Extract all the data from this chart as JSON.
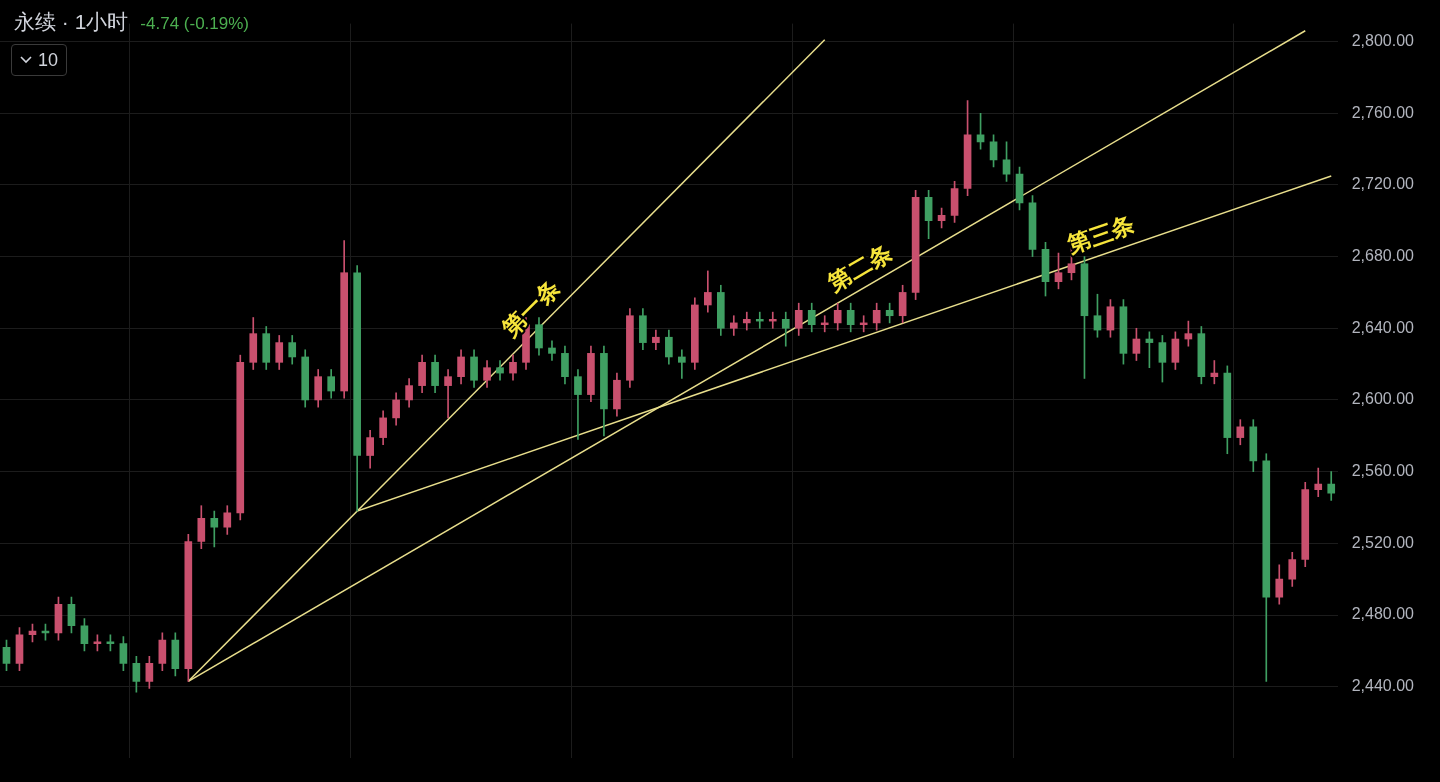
{
  "chart_data": {
    "type": "candlestick",
    "title": "永续 · 1小时",
    "subtitle": "-4.74 (-0.19%)",
    "annotations": [
      "10"
    ],
    "categories": [
      null,
      null,
      null,
      null,
      null,
      null,
      null,
      null,
      null,
      null,
      null,
      null,
      null,
      null,
      null,
      null,
      null,
      null,
      null,
      null,
      null,
      null,
      null,
      null,
      null,
      null,
      null,
      null,
      null,
      null,
      null,
      null,
      null,
      null,
      null,
      null,
      null,
      null,
      null,
      null,
      null,
      null,
      null,
      null,
      null,
      null,
      null,
      null,
      null,
      null,
      null,
      null,
      null,
      null,
      null,
      null,
      null,
      null,
      null,
      null,
      null,
      null,
      null,
      null,
      null,
      null,
      null,
      null,
      null,
      null,
      null,
      null,
      null,
      null,
      null,
      null,
      null,
      null,
      null,
      null,
      null,
      null,
      null,
      null,
      null,
      null,
      null,
      null,
      null,
      null,
      null,
      null,
      null,
      null,
      null,
      null,
      null,
      null,
      null,
      null,
      null,
      null,
      null
    ],
    "ohlc": [
      [
        2462,
        2466,
        2449,
        2453
      ],
      [
        2453,
        2473,
        2449,
        2469
      ],
      [
        2469,
        2475,
        2465,
        2471
      ],
      [
        2471,
        2475,
        2466,
        2470
      ],
      [
        2470,
        2490,
        2466,
        2486
      ],
      [
        2486,
        2490,
        2470,
        2474
      ],
      [
        2474,
        2478,
        2460,
        2464
      ],
      [
        2464,
        2469,
        2460,
        2465
      ],
      [
        2465,
        2469,
        2460,
        2464
      ],
      [
        2464,
        2468,
        2449,
        2453
      ],
      [
        2453,
        2457,
        2437,
        2443
      ],
      [
        2443,
        2457,
        2439,
        2453
      ],
      [
        2453,
        2470,
        2449,
        2466
      ],
      [
        2466,
        2470,
        2446,
        2450
      ],
      [
        2450,
        2525,
        2443,
        2521
      ],
      [
        2521,
        2541,
        2517,
        2534
      ],
      [
        2534,
        2538,
        2518,
        2529
      ],
      [
        2529,
        2541,
        2525,
        2537
      ],
      [
        2537,
        2625,
        2533,
        2621
      ],
      [
        2621,
        2646,
        2617,
        2637
      ],
      [
        2637,
        2641,
        2617,
        2621
      ],
      [
        2621,
        2636,
        2617,
        2632
      ],
      [
        2632,
        2636,
        2620,
        2624
      ],
      [
        2624,
        2628,
        2596,
        2600
      ],
      [
        2600,
        2617,
        2596,
        2613
      ],
      [
        2613,
        2617,
        2601,
        2605
      ],
      [
        2605,
        2689,
        2601,
        2671
      ],
      [
        2671,
        2675,
        2538,
        2569
      ],
      [
        2569,
        2583,
        2562,
        2579
      ],
      [
        2579,
        2594,
        2575,
        2590
      ],
      [
        2590,
        2604,
        2586,
        2600
      ],
      [
        2600,
        2612,
        2596,
        2608
      ],
      [
        2608,
        2625,
        2604,
        2621
      ],
      [
        2621,
        2625,
        2604,
        2608
      ],
      [
        2608,
        2617,
        2590,
        2613
      ],
      [
        2613,
        2628,
        2609,
        2624
      ],
      [
        2624,
        2628,
        2607,
        2611
      ],
      [
        2611,
        2622,
        2607,
        2618
      ],
      [
        2618,
        2622,
        2611,
        2615
      ],
      [
        2615,
        2625,
        2611,
        2621
      ],
      [
        2621,
        2646,
        2617,
        2642
      ],
      [
        2642,
        2646,
        2625,
        2629
      ],
      [
        2629,
        2633,
        2622,
        2626
      ],
      [
        2626,
        2630,
        2609,
        2613
      ],
      [
        2613,
        2617,
        2578,
        2603
      ],
      [
        2603,
        2630,
        2599,
        2626
      ],
      [
        2626,
        2630,
        2580,
        2595
      ],
      [
        2595,
        2615,
        2591,
        2611
      ],
      [
        2611,
        2651,
        2607,
        2647
      ],
      [
        2647,
        2651,
        2628,
        2632
      ],
      [
        2632,
        2639,
        2628,
        2635
      ],
      [
        2635,
        2639,
        2620,
        2624
      ],
      [
        2624,
        2628,
        2612,
        2621
      ],
      [
        2621,
        2657,
        2617,
        2653
      ],
      [
        2653,
        2672,
        2649,
        2660
      ],
      [
        2660,
        2664,
        2636,
        2640
      ],
      [
        2640,
        2647,
        2636,
        2643
      ],
      [
        2643,
        2649,
        2639,
        2645
      ],
      [
        2645,
        2649,
        2640,
        2644
      ],
      [
        2644,
        2649,
        2640,
        2645
      ],
      [
        2645,
        2649,
        2630,
        2640
      ],
      [
        2640,
        2654,
        2636,
        2650
      ],
      [
        2650,
        2654,
        2638,
        2642
      ],
      [
        2642,
        2647,
        2638,
        2643
      ],
      [
        2643,
        2654,
        2639,
        2650
      ],
      [
        2650,
        2654,
        2638,
        2642
      ],
      [
        2642,
        2647,
        2638,
        2643
      ],
      [
        2643,
        2654,
        2639,
        2650
      ],
      [
        2650,
        2654,
        2643,
        2647
      ],
      [
        2647,
        2664,
        2643,
        2660
      ],
      [
        2660,
        2717,
        2656,
        2713
      ],
      [
        2713,
        2717,
        2690,
        2700
      ],
      [
        2700,
        2707,
        2696,
        2703
      ],
      [
        2703,
        2722,
        2699,
        2718
      ],
      [
        2718,
        2767,
        2714,
        2748
      ],
      [
        2748,
        2760,
        2740,
        2744
      ],
      [
        2744,
        2748,
        2730,
        2734
      ],
      [
        2734,
        2744,
        2722,
        2726
      ],
      [
        2726,
        2730,
        2706,
        2710
      ],
      [
        2710,
        2714,
        2680,
        2684
      ],
      [
        2684,
        2688,
        2658,
        2666
      ],
      [
        2666,
        2682,
        2662,
        2671
      ],
      [
        2671,
        2685,
        2667,
        2676
      ],
      [
        2676,
        2680,
        2612,
        2647
      ],
      [
        2647,
        2659,
        2635,
        2639
      ],
      [
        2639,
        2656,
        2635,
        2652
      ],
      [
        2652,
        2656,
        2620,
        2626
      ],
      [
        2626,
        2640,
        2622,
        2634
      ],
      [
        2634,
        2638,
        2618,
        2632
      ],
      [
        2632,
        2636,
        2610,
        2621
      ],
      [
        2621,
        2638,
        2617,
        2634
      ],
      [
        2634,
        2644,
        2630,
        2637
      ],
      [
        2637,
        2641,
        2609,
        2613
      ],
      [
        2613,
        2622,
        2609,
        2615
      ],
      [
        2615,
        2619,
        2570,
        2579
      ],
      [
        2579,
        2589,
        2575,
        2585
      ],
      [
        2585,
        2589,
        2560,
        2566
      ],
      [
        2566,
        2570,
        2443,
        2490
      ],
      [
        2490,
        2508,
        2486,
        2500
      ],
      [
        2500,
        2515,
        2496,
        2511
      ],
      [
        2511,
        2554,
        2507,
        2550
      ],
      [
        2550,
        2562,
        2546,
        2553
      ],
      [
        2553,
        2560,
        2544,
        2548
      ]
    ],
    "series": [
      {
        "type": "line",
        "name": "第一条",
        "color": "#e8de8c",
        "values": [
          null,
          null,
          null,
          null,
          null,
          null,
          null,
          null,
          null,
          null,
          null,
          null,
          null,
          null,
          2443,
          null,
          null,
          null,
          null,
          null,
          null,
          null,
          null,
          null,
          null,
          null,
          null,
          null,
          null,
          null,
          null,
          null,
          null,
          null,
          null,
          null,
          null,
          null,
          null,
          null,
          null,
          null,
          null,
          null,
          null,
          null,
          null,
          null,
          null,
          null,
          null,
          null,
          null,
          null,
          null,
          null,
          null,
          null,
          null,
          null,
          null,
          null,
          null,
          2801,
          null,
          null,
          null,
          null,
          null,
          null,
          null,
          null,
          null,
          null,
          null,
          null,
          null,
          null,
          null,
          null,
          null,
          null,
          null,
          null,
          null,
          null,
          null,
          null,
          null,
          null,
          null,
          null,
          null,
          null,
          null,
          null,
          null,
          null,
          null,
          null,
          null,
          null,
          null
        ]
      },
      {
        "type": "line",
        "name": "第二条",
        "color": "#e8de8c",
        "values": [
          null,
          null,
          null,
          null,
          null,
          null,
          null,
          null,
          null,
          null,
          null,
          null,
          null,
          null,
          2443,
          null,
          null,
          null,
          null,
          null,
          null,
          null,
          null,
          null,
          null,
          null,
          null,
          null,
          null,
          null,
          null,
          null,
          null,
          null,
          null,
          null,
          null,
          null,
          null,
          null,
          null,
          null,
          null,
          null,
          null,
          null,
          null,
          null,
          null,
          null,
          null,
          null,
          null,
          null,
          null,
          null,
          null,
          null,
          null,
          null,
          null,
          null,
          null,
          null,
          null,
          null,
          null,
          null,
          null,
          null,
          null,
          null,
          null,
          null,
          null,
          null,
          null,
          null,
          null,
          null,
          null,
          null,
          null,
          null,
          null,
          null,
          null,
          null,
          null,
          null,
          null,
          null,
          null,
          null,
          null,
          null,
          null,
          null,
          null,
          null,
          2806,
          null,
          null
        ]
      },
      {
        "type": "line",
        "name": "第三条",
        "color": "#e8de8c",
        "values": [
          null,
          null,
          null,
          null,
          null,
          null,
          null,
          null,
          null,
          null,
          null,
          null,
          null,
          null,
          null,
          null,
          null,
          null,
          null,
          null,
          null,
          null,
          null,
          null,
          null,
          null,
          null,
          2538,
          null,
          null,
          null,
          null,
          null,
          null,
          null,
          null,
          null,
          null,
          null,
          null,
          null,
          null,
          null,
          null,
          null,
          null,
          null,
          null,
          null,
          null,
          null,
          null,
          null,
          null,
          null,
          null,
          null,
          null,
          null,
          null,
          null,
          null,
          null,
          null,
          null,
          null,
          null,
          null,
          null,
          null,
          null,
          null,
          null,
          null,
          null,
          null,
          null,
          null,
          null,
          null,
          null,
          null,
          null,
          null,
          null,
          null,
          null,
          null,
          null,
          null,
          null,
          null,
          null,
          null,
          null,
          null,
          null,
          null,
          null,
          null,
          null,
          null,
          2725
        ]
      }
    ],
    "ylim": [
      2400,
      2810
    ],
    "yticks": [
      {
        "value": 2440,
        "label": "2,440.00"
      },
      {
        "value": 2480,
        "label": "2,480.00"
      },
      {
        "value": 2520,
        "label": "2,520.00"
      },
      {
        "value": 2560,
        "label": "2,560.00"
      },
      {
        "value": 2600,
        "label": "2,600.00"
      },
      {
        "value": 2640,
        "label": "2,640.00"
      },
      {
        "value": 2680,
        "label": "2,680.00"
      },
      {
        "value": 2720,
        "label": "2,720.00"
      },
      {
        "value": 2760,
        "label": "2,760.00"
      },
      {
        "value": 2800,
        "label": "2,800.00"
      }
    ],
    "tick_labels": "y",
    "grid": true,
    "legend": false
  }
}
